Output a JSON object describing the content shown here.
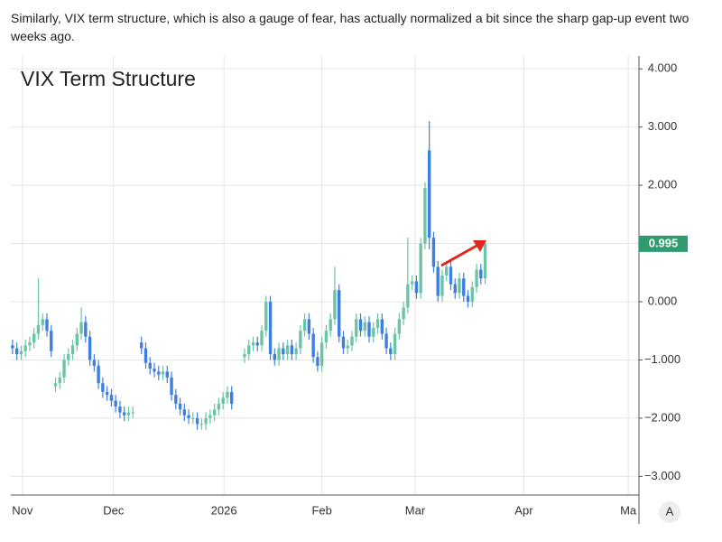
{
  "intro": "Similarly, VIX term structure, which is also a gauge of fear, has actually normalized a bit since the sharp gap-up event two weeks ago.",
  "chart_data": {
    "type": "candlestick",
    "title": "VIX Term Structure",
    "up_color": "#6cc4a6",
    "down_color": "#3f7fe0",
    "grid": true,
    "auto_button": "A",
    "last_value": {
      "value": 0.995,
      "label": "0.995"
    },
    "last_value_color": "#2f9b6e",
    "xlim": [
      -0.4,
      145.8
    ],
    "xticks": [
      {
        "value": 2.3,
        "label": "Nov"
      },
      {
        "value": 23.5,
        "label": "Dec"
      },
      {
        "value": 49.2,
        "label": "2026"
      },
      {
        "value": 72,
        "label": "Feb"
      },
      {
        "value": 93.7,
        "label": "Mar"
      },
      {
        "value": 119,
        "label": "Apr"
      },
      {
        "value": 143.3,
        "label": "Ma"
      }
    ],
    "ylim": [
      -3.32,
      4.22
    ],
    "yticks": [
      {
        "value": 4,
        "label": "4.000"
      },
      {
        "value": 3,
        "label": "3.000"
      },
      {
        "value": 2,
        "label": "2.000"
      },
      {
        "value": 1,
        "label": "1.000"
      },
      {
        "value": 0,
        "label": "0.000"
      },
      {
        "value": -1,
        "label": "−1.000"
      },
      {
        "value": -2,
        "label": "−2.000"
      },
      {
        "value": -3,
        "label": "−3.000"
      }
    ],
    "open": [
      -0.75,
      -0.8,
      -0.9,
      -0.85,
      -0.75,
      -0.7,
      -0.55,
      -0.4,
      -0.3,
      -0.5,
      -1.45,
      -1.4,
      -1.3,
      -1.0,
      -0.9,
      -0.75,
      -0.55,
      -0.35,
      -0.6,
      -1.0,
      -1.1,
      -1.4,
      -1.55,
      -1.6,
      -1.7,
      -1.8,
      -1.9,
      -1.95,
      -1.9,
      null,
      -0.7,
      -0.8,
      -1.05,
      -1.15,
      -1.2,
      -1.25,
      -1.2,
      -1.3,
      -1.6,
      -1.75,
      -1.85,
      -1.95,
      -2.0,
      -2.0,
      -2.1,
      -2.1,
      -2.0,
      -1.95,
      -1.85,
      -1.75,
      -1.65,
      -1.55,
      null,
      null,
      -0.95,
      -0.9,
      -0.75,
      -0.7,
      -0.75,
      -0.5,
      0.0,
      -0.9,
      -1.0,
      -0.8,
      -0.9,
      -0.75,
      -0.9,
      -0.8,
      -0.5,
      -0.3,
      -0.55,
      -0.95,
      -1.1,
      -0.7,
      -0.5,
      -0.3,
      0.2,
      -0.6,
      -0.8,
      -0.75,
      -0.6,
      -0.3,
      -0.5,
      -0.35,
      -0.6,
      -0.45,
      -0.3,
      -0.55,
      -0.8,
      -0.9,
      -0.55,
      -0.3,
      -0.1,
      0.3,
      0.35,
      0.15,
      1.0,
      2.6,
      1.1,
      0.6,
      0.1,
      0.45,
      0.6,
      0.3,
      0.15,
      0.4,
      0.1,
      0.0,
      0.25,
      0.55,
      0.4
    ],
    "high": [
      -0.65,
      -0.7,
      -0.75,
      -0.65,
      -0.6,
      -0.45,
      0.4,
      -0.2,
      -0.2,
      -0.4,
      -1.3,
      -1.2,
      -0.9,
      -0.8,
      -0.65,
      -0.45,
      -0.1,
      -0.25,
      -0.5,
      -0.9,
      -1.0,
      -1.3,
      -1.45,
      -1.5,
      -1.6,
      -1.7,
      -1.8,
      -1.8,
      -1.8,
      null,
      -0.6,
      -0.7,
      -0.95,
      -1.05,
      -1.1,
      -1.1,
      -1.1,
      -1.2,
      -1.5,
      -1.65,
      -1.75,
      -1.85,
      -1.9,
      -1.9,
      -2.0,
      -1.9,
      -1.85,
      -1.75,
      -1.65,
      -1.55,
      -1.45,
      -1.45,
      null,
      null,
      -0.8,
      -0.65,
      -0.6,
      -0.6,
      -0.4,
      0.1,
      0.1,
      -0.8,
      -0.7,
      -0.7,
      -0.65,
      -0.65,
      -0.7,
      -0.4,
      -0.2,
      -0.2,
      -0.45,
      -0.85,
      -0.6,
      -0.4,
      -0.2,
      0.6,
      0.3,
      -0.5,
      -0.65,
      -0.5,
      -0.2,
      -0.2,
      -0.25,
      -0.25,
      -0.35,
      -0.2,
      -0.2,
      -0.45,
      -0.7,
      -0.45,
      -0.2,
      0.0,
      1.1,
      0.45,
      0.45,
      1.1,
      2.05,
      3.1,
      1.2,
      0.7,
      0.55,
      0.7,
      0.7,
      0.4,
      0.5,
      0.5,
      0.2,
      0.35,
      0.65,
      0.65,
      1.05
    ],
    "low": [
      -0.9,
      -1.0,
      -1.0,
      -0.95,
      -0.85,
      -0.8,
      -0.65,
      -0.5,
      -0.6,
      -0.95,
      -1.55,
      -1.5,
      -1.4,
      -1.1,
      -1.0,
      -0.85,
      -0.65,
      -0.7,
      -1.1,
      -1.2,
      -1.5,
      -1.65,
      -1.7,
      -1.8,
      -1.9,
      -2.0,
      -2.05,
      -2.05,
      -2.0,
      null,
      -0.9,
      -1.15,
      -1.25,
      -1.3,
      -1.35,
      -1.35,
      -1.4,
      -1.7,
      -1.85,
      -1.95,
      -2.05,
      -2.1,
      -2.1,
      -2.2,
      -2.2,
      -2.2,
      -2.1,
      -2.05,
      -1.95,
      -1.85,
      -1.75,
      -1.85,
      null,
      null,
      -1.05,
      -1.0,
      -0.85,
      -0.85,
      -0.85,
      -0.6,
      -1.0,
      -1.1,
      -1.1,
      -1.0,
      -1.0,
      -1.0,
      -1.0,
      -0.9,
      -0.6,
      -0.65,
      -1.05,
      -1.2,
      -1.2,
      -0.8,
      -0.6,
      -0.4,
      -0.7,
      -0.9,
      -0.9,
      -0.85,
      -0.7,
      -0.6,
      -0.6,
      -0.7,
      -0.7,
      -0.55,
      -0.65,
      -0.9,
      -1.0,
      -1.0,
      -0.65,
      -0.4,
      -0.2,
      0.2,
      0.05,
      0.05,
      0.9,
      0.9,
      0.5,
      0.0,
      0.0,
      0.35,
      0.2,
      0.05,
      0.05,
      0.0,
      -0.1,
      -0.1,
      0.15,
      0.3,
      0.3
    ],
    "close": [
      -0.8,
      -0.9,
      -0.85,
      -0.75,
      -0.7,
      -0.55,
      -0.4,
      -0.3,
      -0.5,
      -0.85,
      -1.4,
      -1.3,
      -1.0,
      -0.9,
      -0.75,
      -0.55,
      -0.35,
      -0.6,
      -1.0,
      -1.1,
      -1.4,
      -1.55,
      -1.6,
      -1.7,
      -1.8,
      -1.9,
      -1.95,
      -1.9,
      -1.9,
      null,
      -0.8,
      -1.05,
      -1.15,
      -1.2,
      -1.25,
      -1.2,
      -1.3,
      -1.6,
      -1.75,
      -1.85,
      -1.95,
      -2.0,
      -2.0,
      -2.1,
      -2.1,
      -2.0,
      -1.95,
      -1.85,
      -1.75,
      -1.65,
      -1.55,
      -1.75,
      null,
      null,
      -0.9,
      -0.75,
      -0.7,
      -0.75,
      -0.5,
      0.0,
      -0.9,
      -1.0,
      -0.8,
      -0.9,
      -0.75,
      -0.9,
      -0.8,
      -0.5,
      -0.3,
      -0.55,
      -0.95,
      -1.1,
      -0.7,
      -0.5,
      -0.3,
      0.2,
      -0.6,
      -0.8,
      -0.75,
      -0.6,
      -0.3,
      -0.5,
      -0.35,
      -0.6,
      -0.45,
      -0.3,
      -0.55,
      -0.8,
      -0.9,
      -0.55,
      -0.3,
      -0.1,
      0.3,
      0.35,
      0.15,
      1.0,
      1.95,
      1.1,
      0.6,
      0.1,
      0.45,
      0.6,
      0.3,
      0.15,
      0.4,
      0.1,
      0.0,
      0.25,
      0.55,
      0.4,
      0.995
    ]
  }
}
